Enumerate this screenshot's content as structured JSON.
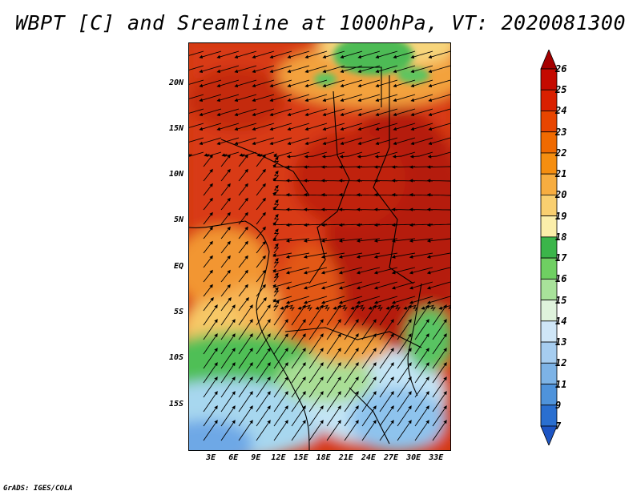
{
  "title": "WBPT [C] and Sreamline at 1000hPa, VT: 2020081300",
  "footer": "GrADS: IGES/COLA",
  "map": {
    "lat_ticks": [
      "20N",
      "15N",
      "10N",
      "5N",
      "EQ",
      "5S",
      "10S",
      "15S"
    ],
    "lat_values": [
      20,
      15,
      10,
      5,
      0,
      -5,
      -10,
      -15
    ],
    "lon_ticks": [
      "3E",
      "6E",
      "9E",
      "12E",
      "15E",
      "18E",
      "21E",
      "24E",
      "27E",
      "30E",
      "33E"
    ],
    "lon_values": [
      3,
      6,
      9,
      12,
      15,
      18,
      21,
      24,
      27,
      30,
      33
    ],
    "lat_range": [
      -20,
      24.5
    ],
    "lon_range": [
      0,
      35
    ]
  },
  "colorbar": {
    "labels": [
      "26",
      "25",
      "24",
      "23",
      "22",
      "21",
      "20",
      "19",
      "18",
      "17",
      "16",
      "15",
      "14",
      "13",
      "12",
      "11",
      "9",
      "7"
    ],
    "colors": [
      "#a50000",
      "#c40a00",
      "#d92000",
      "#e84500",
      "#f06a00",
      "#f58e10",
      "#f7ad40",
      "#f9cf70",
      "#fbeeaa",
      "#3bb54a",
      "#6fcf62",
      "#a8e29a",
      "#dff3dc",
      "#cfe6f7",
      "#a6cdf0",
      "#7db3e6",
      "#4f93db",
      "#2a6fd0",
      "#1d55c4"
    ]
  }
}
